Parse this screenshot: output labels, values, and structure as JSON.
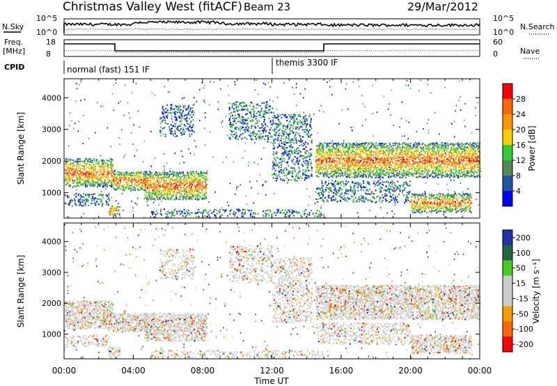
{
  "header": {
    "title": "Christmas Valley West (fitACF)",
    "beam": "Beam 23",
    "date": "29/Mar/2012"
  },
  "top_panels": {
    "nsky_label": "N.Sky",
    "nsearch_label": "N.Search",
    "nsky_ticks": [
      "10^5",
      "10^0"
    ],
    "nsearch_ticks": [
      "10^5",
      "10^0"
    ],
    "freq_label": "Freq.",
    "freq_unit": "[MHz]",
    "freq_ticks": [
      "18",
      "8"
    ],
    "nave_label": "Nave",
    "nave_ticks": [
      "60",
      "0"
    ],
    "cpid_label": "CPID",
    "cpid_segments": [
      {
        "label": "normal (fast) 151 IF",
        "start": 0,
        "end": 12
      },
      {
        "label": "themis 3300 IF",
        "start": 12,
        "end": 24
      }
    ]
  },
  "chart_data": [
    {
      "type": "heatmap",
      "name": "power",
      "ylabel": "Slant Range [km]",
      "yticks": [
        1000,
        2000,
        3000,
        4000
      ],
      "ylim": [
        200,
        4600
      ],
      "colorbar_label": "Power [dB]",
      "colorbar_ticks": [
        "28",
        "24",
        "20",
        "16",
        "12",
        "8",
        "4"
      ],
      "colors": [
        "#ff0000",
        "#ff6600",
        "#ff9900",
        "#ffcc00",
        "#33cc33",
        "#558855",
        "#2255aa",
        "#0000ff"
      ]
    },
    {
      "type": "heatmap",
      "name": "velocity",
      "ylabel": "Slant Range [km]",
      "yticks": [
        1000,
        2000,
        3000,
        4000
      ],
      "ylim": [
        200,
        4600
      ],
      "colorbar_label": "Velocity [m s⁻¹]",
      "colorbar_ticks": [
        "200",
        "100",
        "50",
        "15",
        "-15",
        "-50",
        "-100",
        "-200"
      ],
      "colors": [
        "#2233aa",
        "#226644",
        "#44cc22",
        "#cccccc",
        "#cccccc",
        "#ff9900",
        "#ff6600",
        "#ff0000"
      ]
    }
  ],
  "x_axis": {
    "ticks": [
      "00:00",
      "04:00",
      "08:00",
      "12:00",
      "16:00",
      "20:00",
      "00:00"
    ],
    "label": "Time UT",
    "range_hours": [
      0,
      24
    ]
  },
  "scatter_regions": [
    {
      "t0": 0.0,
      "t1": 2.8,
      "r0": 1200,
      "r1": 2100,
      "core": true
    },
    {
      "t0": 0.0,
      "t1": 2.6,
      "r0": 600,
      "r1": 1000,
      "core": false
    },
    {
      "t0": 2.5,
      "t1": 3.2,
      "r0": 300,
      "r1": 600,
      "core": true
    },
    {
      "t0": 2.8,
      "t1": 4.8,
      "r0": 1100,
      "r1": 1700,
      "core": true
    },
    {
      "t0": 4.6,
      "t1": 8.2,
      "r0": 800,
      "r1": 1700,
      "core": true
    },
    {
      "t0": 5.5,
      "t1": 7.5,
      "r0": 2800,
      "r1": 3800,
      "core": false
    },
    {
      "t0": 9.5,
      "t1": 12.0,
      "r0": 2700,
      "r1": 3900,
      "core": false
    },
    {
      "t0": 12.0,
      "t1": 14.3,
      "r0": 1400,
      "r1": 3500,
      "core": false
    },
    {
      "t0": 14.5,
      "t1": 24.0,
      "r0": 1500,
      "r1": 2600,
      "core": true
    },
    {
      "t0": 14.5,
      "t1": 20.0,
      "r0": 700,
      "r1": 1400,
      "core": false
    },
    {
      "t0": 20.0,
      "t1": 23.5,
      "r0": 400,
      "r1": 1000,
      "core": true
    },
    {
      "t0": 5.0,
      "t1": 15.0,
      "r0": 250,
      "r1": 500,
      "core": false
    }
  ]
}
